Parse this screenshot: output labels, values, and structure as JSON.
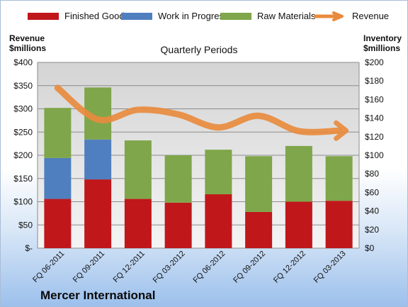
{
  "chart_data": {
    "type": "bar",
    "title": "Quarterly Periods",
    "company": "Mercer International",
    "left_axis_title": [
      "Revenue",
      "$millions"
    ],
    "right_axis_title": [
      "Inventory",
      "$millions"
    ],
    "left_ylim": [
      0,
      400
    ],
    "right_ylim": [
      0,
      200
    ],
    "left_ticks": [
      "$-",
      "$50",
      "$100",
      "$150",
      "$200",
      "$250",
      "$300",
      "$350",
      "$400"
    ],
    "right_ticks": [
      "$0",
      "$20",
      "$40",
      "$60",
      "$80",
      "$100",
      "$120",
      "$140",
      "$160",
      "$180",
      "$200"
    ],
    "categories": [
      "FQ 06-2011",
      "FQ 09-2011",
      "FQ 12-2011",
      "FQ 03-2012",
      "FQ 06-2012",
      "FQ 09-2012",
      "FQ 12-2012",
      "FQ 03-2013"
    ],
    "stacked_axis": "right",
    "series": [
      {
        "name": "Finished Goods",
        "color": "#c0171b",
        "values": [
          53,
          74,
          53,
          49,
          58,
          39,
          50,
          51
        ]
      },
      {
        "name": "Work in Progress",
        "color": "#4f7fbf",
        "values": [
          44,
          43,
          0,
          0,
          0,
          0,
          0,
          0
        ]
      },
      {
        "name": "Raw Materials",
        "color": "#7fa64a",
        "values": [
          54,
          56,
          63,
          51,
          48,
          60,
          60,
          48
        ]
      }
    ],
    "line_series": {
      "name": "Revenue",
      "axis": "left",
      "color": "#e88b3e",
      "values": [
        345,
        277,
        298,
        288,
        260,
        285,
        252,
        253
      ]
    },
    "grid": true,
    "legend": "top"
  }
}
